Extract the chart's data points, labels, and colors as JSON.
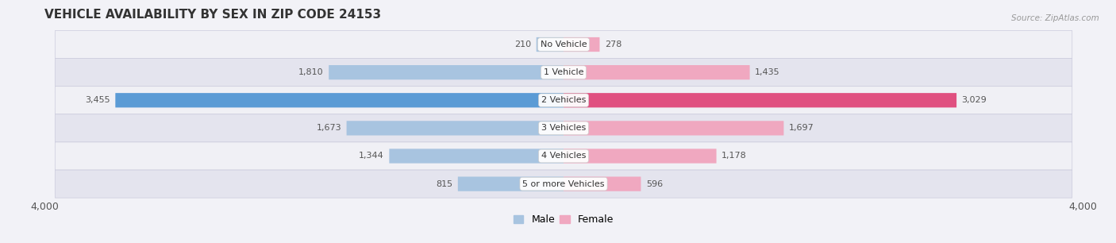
{
  "title": "VEHICLE AVAILABILITY BY SEX IN ZIP CODE 24153",
  "source": "Source: ZipAtlas.com",
  "categories": [
    "No Vehicle",
    "1 Vehicle",
    "2 Vehicles",
    "3 Vehicles",
    "4 Vehicles",
    "5 or more Vehicles"
  ],
  "male_values": [
    210,
    1810,
    3455,
    1673,
    1344,
    815
  ],
  "female_values": [
    278,
    1435,
    3029,
    1697,
    1178,
    596
  ],
  "male_colors": [
    "#a8c4e0",
    "#a8c4e0",
    "#5b9bd5",
    "#a8c4e0",
    "#a8c4e0",
    "#a8c4e0"
  ],
  "female_colors": [
    "#f0a8c0",
    "#f0a8c0",
    "#e05080",
    "#f0a8c0",
    "#f0a8c0",
    "#f0a8c0"
  ],
  "row_bg_color_light": "#f0f0f5",
  "row_bg_color_dark": "#e4e4ee",
  "row_bg_border": "#d0d0dc",
  "xlim": 4000,
  "bar_height": 0.52,
  "title_fontsize": 11,
  "tick_fontsize": 9,
  "category_fontsize": 8,
  "value_fontsize": 8,
  "legend_fontsize": 9,
  "label_inside_color": "#ffffff",
  "label_outside_color": "#555555"
}
